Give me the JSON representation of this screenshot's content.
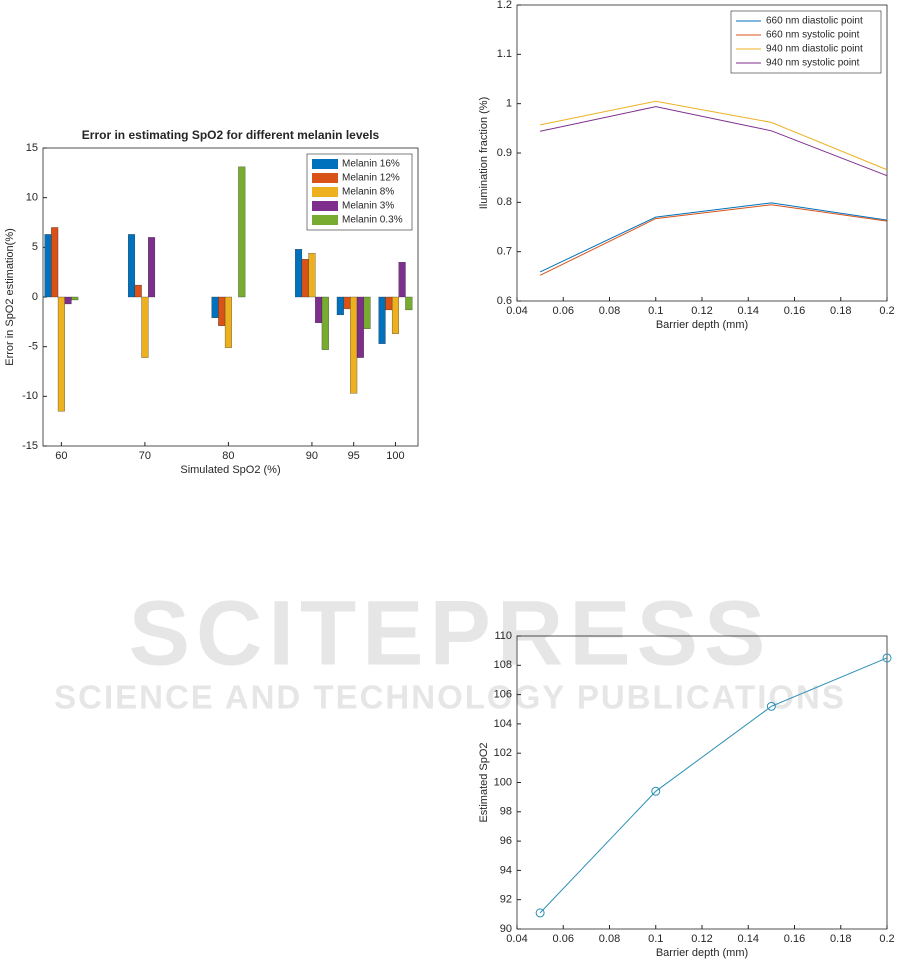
{
  "watermark": {
    "title": "SCITEPRESS",
    "subtitle": "SCIENCE AND TECHNOLOGY PUBLICATIONS"
  },
  "chart_data": [
    {
      "type": "bar",
      "title": "Error in estimating SpO2 for different melanin levels",
      "xlabel": "Simulated SpO2 (%)",
      "ylabel": "Error in SpO2 estimation(%)",
      "x": [
        60,
        70,
        80,
        90,
        95,
        100
      ],
      "xlim": [
        57.8,
        102.7
      ],
      "xticks": [
        60,
        70,
        80,
        90,
        95,
        100
      ],
      "ylim": [
        -15,
        15
      ],
      "yticks": [
        -15,
        -10,
        -5,
        0,
        5,
        10,
        15
      ],
      "legend": "upper right",
      "series": [
        {
          "name": "Melanin 16%",
          "color": "#0072BD",
          "values": [
            6.3,
            6.3,
            -2.1,
            4.8,
            -1.8,
            -4.7
          ]
        },
        {
          "name": "Melanin 12%",
          "color": "#D95319",
          "values": [
            7.0,
            1.2,
            -2.9,
            3.8,
            -1.2,
            -1.3
          ]
        },
        {
          "name": "Melanin 8%",
          "color": "#EDB120",
          "values": [
            -11.5,
            -6.1,
            -5.1,
            4.4,
            -9.7,
            -3.7
          ]
        },
        {
          "name": "Melanin 3%",
          "color": "#7E2F8E",
          "values": [
            -0.7,
            6.0,
            0,
            -2.6,
            -6.1,
            3.5
          ]
        },
        {
          "name": "Melanin 0.3%",
          "color": "#77AC30",
          "values": [
            -0.3,
            0,
            13.1,
            -5.3,
            -3.2,
            -1.3
          ]
        }
      ]
    },
    {
      "type": "line",
      "xlabel": "Barrier depth (mm)",
      "ylabel": "Ilumination fraction (%)",
      "x": [
        0.05,
        0.1,
        0.15,
        0.2
      ],
      "xlim": [
        0.04,
        0.2
      ],
      "xticks": [
        0.04,
        0.06,
        0.08,
        0.1,
        0.12,
        0.14,
        0.16,
        0.18,
        0.2
      ],
      "ylim": [
        0.6,
        1.2
      ],
      "yticks": [
        0.6,
        0.7,
        0.8,
        0.9,
        1,
        1.1,
        1.2
      ],
      "legend": "upper right",
      "series": [
        {
          "name": "660 nm diastolic point",
          "color": "#0072BD",
          "values": [
            0.659,
            0.77,
            0.799,
            0.764
          ]
        },
        {
          "name": "660 nm systolic point",
          "color": "#D95319",
          "values": [
            0.652,
            0.767,
            0.795,
            0.762
          ]
        },
        {
          "name": "940 nm diastolic point",
          "color": "#EDB120",
          "values": [
            0.957,
            1.005,
            0.962,
            0.866
          ]
        },
        {
          "name": "940 nm systolic point",
          "color": "#7E2F8E",
          "values": [
            0.944,
            0.994,
            0.945,
            0.854
          ]
        }
      ]
    },
    {
      "type": "line",
      "xlabel": "Barrier depth (mm)",
      "ylabel": "Estimated SpO2",
      "x": [
        0.05,
        0.1,
        0.15,
        0.2
      ],
      "xlim": [
        0.04,
        0.2
      ],
      "xticks": [
        0.04,
        0.06,
        0.08,
        0.1,
        0.12,
        0.14,
        0.16,
        0.18,
        0.2
      ],
      "ylim": [
        90,
        110
      ],
      "yticks": [
        90,
        92,
        94,
        96,
        98,
        100,
        102,
        104,
        106,
        108,
        110
      ],
      "marker": "circle",
      "series": [
        {
          "color": "#2a8fb5",
          "values": [
            91.1,
            99.4,
            105.2,
            108.5
          ]
        }
      ]
    }
  ]
}
